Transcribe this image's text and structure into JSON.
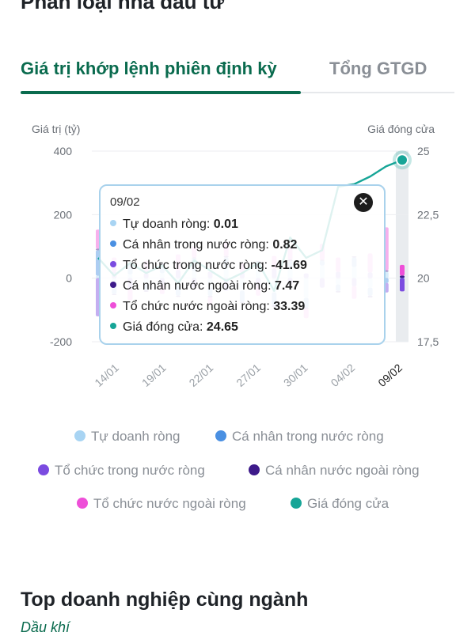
{
  "section_title": "Phân loại nhà đầu tư",
  "tabs": [
    {
      "label": "Giá trị khớp lệnh phiên định kỳ",
      "active": true
    },
    {
      "label": "Tổng GTGD",
      "active": false
    }
  ],
  "chart_data": {
    "type": "bar",
    "left_axis_label": "Giá trị (tỷ)",
    "right_axis_label": "Giá đóng cửa",
    "left_ylim": [
      -200,
      400
    ],
    "left_ticks": [
      "400",
      "200",
      "0",
      "-200"
    ],
    "right_ylim": [
      17.5,
      25
    ],
    "right_ticks": [
      "25",
      "22,5",
      "20",
      "17,5"
    ],
    "x_tick_labels": [
      "14/01",
      "19/01",
      "22/01",
      "27/01",
      "30/01",
      "04/02",
      "09/02"
    ],
    "n_sessions": 20,
    "series": [
      {
        "name": "Tự doanh ròng",
        "color": "#a8d4f3",
        "values": [
          8,
          -10,
          12,
          -18,
          16,
          -25,
          22,
          -30,
          35,
          -40,
          30,
          -45,
          28,
          -62,
          40,
          -20,
          35,
          -30,
          20,
          0.01
        ]
      },
      {
        "name": "Cá nhân trong nước ròng",
        "color": "#4a90e2",
        "values": [
          80,
          -40,
          30,
          -20,
          25,
          -30,
          40,
          -25,
          30,
          -35,
          20,
          -40,
          25,
          -30,
          15,
          -20,
          30,
          -25,
          -15,
          0.82
        ]
      },
      {
        "name": "Tổ chức trong nước ròng",
        "color": "#7b4be0",
        "values": [
          -120,
          20,
          -35,
          15,
          -20,
          25,
          -30,
          20,
          -40,
          18,
          -25,
          30,
          -20,
          15,
          -30,
          20,
          -25,
          18,
          -30,
          -41.69
        ]
      },
      {
        "name": "Cá nhân nước ngoài ròng",
        "color": "#3d1a8a",
        "values": [
          5,
          -3,
          4,
          -5,
          6,
          -4,
          3,
          -6,
          5,
          -3,
          4,
          -5,
          6,
          -4,
          3,
          -5,
          4,
          -6,
          5,
          7.47
        ]
      },
      {
        "name": "Tổ chức nước ngoài ròng",
        "color": "#ee4fd8",
        "values": [
          60,
          45,
          -35,
          40,
          -30,
          50,
          35,
          -25,
          45,
          30,
          -30,
          40,
          35,
          -30,
          50,
          45,
          -40,
          60,
          135,
          33.39
        ]
      },
      {
        "name": "Giá đóng cửa",
        "color": "#16a597",
        "line": true,
        "values": [
          20.8,
          20.1,
          20.6,
          20.2,
          20.5,
          19.8,
          20.7,
          20.3,
          19.9,
          20.2,
          20.6,
          19.5,
          21.6,
          20.8,
          21.1,
          23.6,
          23.7,
          24.0,
          24.4,
          24.65
        ]
      }
    ]
  },
  "tooltip": {
    "date": "09/02",
    "close_icon": "close-icon",
    "rows": [
      {
        "label": "Tự doanh ròng: ",
        "value": "0.01",
        "color": "#a8d4f3"
      },
      {
        "label": "Cá nhân trong nước ròng: ",
        "value": "0.82",
        "color": "#4a90e2"
      },
      {
        "label": "Tổ chức trong nước ròng: ",
        "value": "-41.69",
        "color": "#7b4be0"
      },
      {
        "label": "Cá nhân nước ngoài ròng: ",
        "value": "7.47",
        "color": "#3d1a8a"
      },
      {
        "label": "Tổ chức nước ngoài ròng: ",
        "value": "33.39",
        "color": "#ee4fd8"
      },
      {
        "label": "Giá đóng cửa: ",
        "value": "24.65",
        "color": "#16a597"
      }
    ]
  },
  "legend": [
    {
      "label": "Tự doanh ròng",
      "color": "#a8d4f3"
    },
    {
      "label": "Cá nhân trong nước ròng",
      "color": "#4a90e2"
    },
    {
      "label": "Tổ chức trong nước ròng",
      "color": "#7b4be0"
    },
    {
      "label": "Cá nhân nước ngoài ròng",
      "color": "#3d1a8a"
    },
    {
      "label": "Tổ chức nước ngoài ròng",
      "color": "#ee4fd8"
    },
    {
      "label": "Giá đóng cửa",
      "color": "#16a597"
    }
  ],
  "top_section": {
    "title": "Top doanh nghiệp cùng ngành",
    "subtitle": "Dầu khí"
  }
}
